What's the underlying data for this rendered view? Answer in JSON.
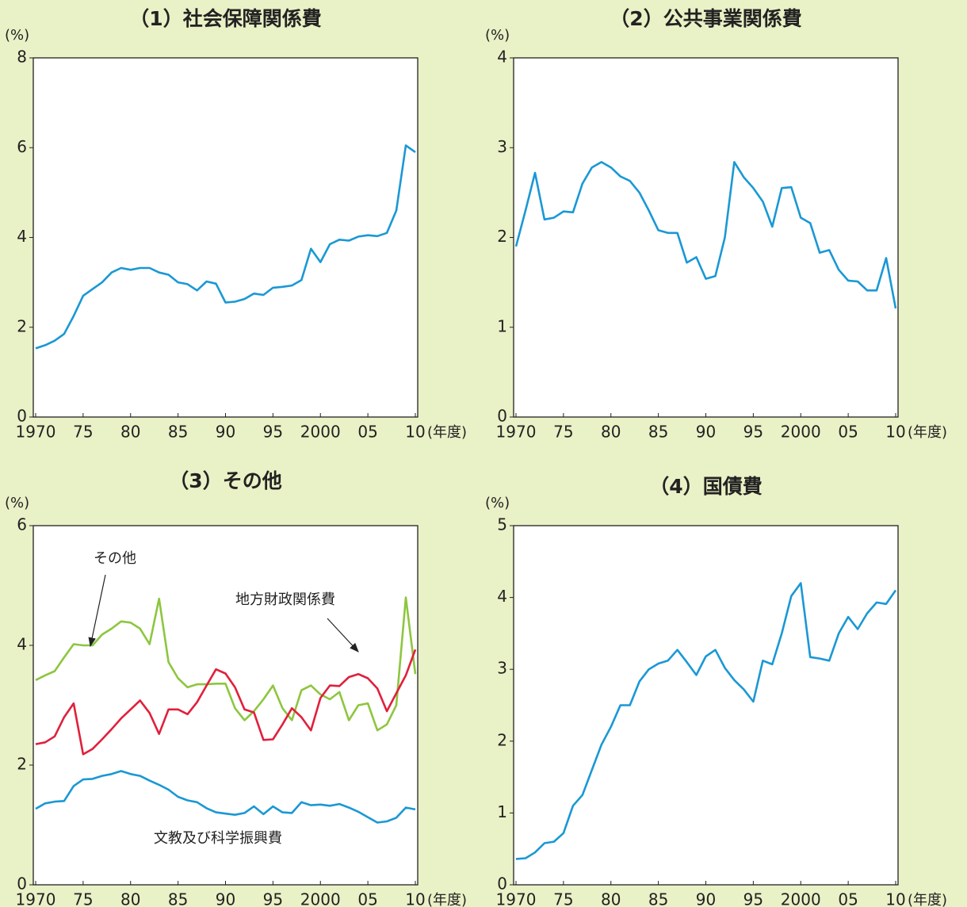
{
  "chart_data": [
    {
      "type": "line",
      "title": "（1）社会保障関係費",
      "y_label": "(%)",
      "x_label": "(年度)",
      "x": [
        1970,
        1971,
        1972,
        1973,
        1974,
        1975,
        1976,
        1977,
        1978,
        1979,
        1980,
        1981,
        1982,
        1983,
        1984,
        1985,
        1986,
        1987,
        1988,
        1989,
        1990,
        1991,
        1992,
        1993,
        1994,
        1995,
        1996,
        1997,
        1998,
        1999,
        2000,
        2001,
        2002,
        2003,
        2004,
        2005,
        2006,
        2007,
        2008,
        2009,
        2010
      ],
      "values": [
        1.53,
        1.6,
        1.7,
        1.85,
        2.25,
        2.7,
        2.85,
        3.0,
        3.22,
        3.32,
        3.28,
        3.32,
        3.32,
        3.22,
        3.17,
        3.0,
        2.96,
        2.82,
        3.02,
        2.97,
        2.55,
        2.57,
        2.63,
        2.75,
        2.72,
        2.88,
        2.9,
        2.93,
        3.05,
        3.75,
        3.45,
        3.85,
        3.95,
        3.93,
        4.02,
        4.05,
        4.03,
        4.1,
        4.6,
        6.05,
        5.9
      ],
      "color": "#1a98d5",
      "xlim": [
        1970,
        2010
      ],
      "xticks": [
        1970,
        {
          "value": 1975,
          "label": "75"
        },
        {
          "value": 1980,
          "label": "80"
        },
        {
          "value": 1985,
          "label": "85"
        },
        {
          "value": 1990,
          "label": "90"
        },
        {
          "value": 1995,
          "label": "95"
        },
        2000,
        {
          "value": 2005,
          "label": "05"
        },
        {
          "value": 2010,
          "label": "10"
        }
      ],
      "ylim": [
        0,
        8
      ],
      "yticks": [
        0,
        2,
        4,
        6,
        8
      ]
    },
    {
      "type": "line",
      "title": "（2）公共事業関係費",
      "y_label": "(%)",
      "x_label": "(年度)",
      "x": [
        1970,
        1971,
        1972,
        1973,
        1974,
        1975,
        1976,
        1977,
        1978,
        1979,
        1980,
        1981,
        1982,
        1983,
        1984,
        1985,
        1986,
        1987,
        1988,
        1989,
        1990,
        1991,
        1992,
        1993,
        1994,
        1995,
        1996,
        1997,
        1998,
        1999,
        2000,
        2001,
        2002,
        2003,
        2004,
        2005,
        2006,
        2007,
        2008,
        2009,
        2010
      ],
      "values": [
        1.9,
        2.3,
        2.72,
        2.2,
        2.22,
        2.29,
        2.28,
        2.6,
        2.78,
        2.84,
        2.78,
        2.68,
        2.63,
        2.5,
        2.3,
        2.08,
        2.05,
        2.05,
        1.72,
        1.78,
        1.54,
        1.57,
        2.0,
        2.84,
        2.67,
        2.55,
        2.4,
        2.12,
        2.55,
        2.56,
        2.22,
        2.16,
        1.83,
        1.86,
        1.64,
        1.52,
        1.51,
        1.41,
        1.41,
        1.77,
        1.21
      ],
      "color": "#1a98d5",
      "xlim": [
        1970,
        2010
      ],
      "xticks": [
        1970,
        {
          "value": 1975,
          "label": "75"
        },
        {
          "value": 1980,
          "label": "80"
        },
        {
          "value": 1985,
          "label": "85"
        },
        {
          "value": 1990,
          "label": "90"
        },
        {
          "value": 1995,
          "label": "95"
        },
        2000,
        {
          "value": 2005,
          "label": "05"
        },
        {
          "value": 2010,
          "label": "10"
        }
      ],
      "ylim": [
        0,
        4
      ],
      "yticks": [
        0,
        1,
        2,
        3,
        4
      ]
    },
    {
      "type": "line",
      "title": "（3）その他",
      "y_label": "(%)",
      "x_label": "(年度)",
      "x": [
        1970,
        1971,
        1972,
        1973,
        1974,
        1975,
        1976,
        1977,
        1978,
        1979,
        1980,
        1981,
        1982,
        1983,
        1984,
        1985,
        1986,
        1987,
        1988,
        1989,
        1990,
        1991,
        1992,
        1993,
        1994,
        1995,
        1996,
        1997,
        1998,
        1999,
        2000,
        2001,
        2002,
        2003,
        2004,
        2005,
        2006,
        2007,
        2008,
        2009,
        2010
      ],
      "series": [
        {
          "name": "その他",
          "color": "#8dc63f",
          "values": [
            3.42,
            3.5,
            3.57,
            3.8,
            4.02,
            4.0,
            4.0,
            4.18,
            4.28,
            4.4,
            4.38,
            4.28,
            4.02,
            4.78,
            3.72,
            3.45,
            3.3,
            3.35,
            3.35,
            3.36,
            3.36,
            2.95,
            2.75,
            2.9,
            3.1,
            3.33,
            2.95,
            2.75,
            3.25,
            3.33,
            3.18,
            3.1,
            3.22,
            2.75,
            3.0,
            3.03,
            2.58,
            2.68,
            3.0,
            4.8,
            3.52
          ]
        },
        {
          "name": "地方財政関係費",
          "color": "#e0203c",
          "values": [
            2.35,
            2.38,
            2.48,
            2.8,
            3.03,
            2.18,
            2.27,
            2.43,
            2.6,
            2.78,
            2.93,
            3.08,
            2.87,
            2.52,
            2.93,
            2.93,
            2.85,
            3.05,
            3.33,
            3.6,
            3.53,
            3.3,
            2.93,
            2.88,
            2.42,
            2.43,
            2.68,
            2.95,
            2.8,
            2.58,
            3.12,
            3.33,
            3.32,
            3.47,
            3.52,
            3.45,
            3.28,
            2.9,
            3.2,
            3.5,
            3.93
          ]
        },
        {
          "name": "文教及び科学振興費",
          "color": "#1a98d5",
          "values": [
            1.27,
            1.36,
            1.39,
            1.4,
            1.65,
            1.76,
            1.77,
            1.82,
            1.85,
            1.9,
            1.85,
            1.82,
            1.74,
            1.67,
            1.59,
            1.47,
            1.41,
            1.38,
            1.28,
            1.21,
            1.19,
            1.17,
            1.2,
            1.31,
            1.18,
            1.31,
            1.21,
            1.2,
            1.38,
            1.33,
            1.34,
            1.32,
            1.35,
            1.29,
            1.22,
            1.13,
            1.04,
            1.06,
            1.12,
            1.29,
            1.26
          ]
        }
      ],
      "xlim": [
        1970,
        2010
      ],
      "xticks": [
        1970,
        {
          "value": 1975,
          "label": "75"
        },
        {
          "value": 1980,
          "label": "80"
        },
        {
          "value": 1985,
          "label": "85"
        },
        {
          "value": 1990,
          "label": "90"
        },
        {
          "value": 1995,
          "label": "95"
        },
        2000,
        {
          "value": 2005,
          "label": "05"
        },
        {
          "value": 2010,
          "label": "10"
        }
      ],
      "ylim": [
        0,
        6
      ],
      "yticks": [
        0,
        2,
        4,
        6
      ]
    },
    {
      "type": "line",
      "title": "（4）国債費",
      "y_label": "(%)",
      "x_label": "(年度)",
      "x": [
        1970,
        1971,
        1972,
        1973,
        1974,
        1975,
        1976,
        1977,
        1978,
        1979,
        1980,
        1981,
        1982,
        1983,
        1984,
        1985,
        1986,
        1987,
        1988,
        1989,
        1990,
        1991,
        1992,
        1993,
        1994,
        1995,
        1996,
        1997,
        1998,
        1999,
        2000,
        2001,
        2002,
        2003,
        2004,
        2005,
        2006,
        2007,
        2008,
        2009,
        2010
      ],
      "values": [
        0.36,
        0.37,
        0.45,
        0.58,
        0.6,
        0.72,
        1.1,
        1.25,
        1.6,
        1.95,
        2.2,
        2.5,
        2.5,
        2.83,
        3.0,
        3.08,
        3.12,
        3.27,
        3.1,
        2.92,
        3.18,
        3.27,
        3.02,
        2.85,
        2.72,
        2.55,
        3.12,
        3.07,
        3.5,
        4.02,
        4.2,
        3.17,
        3.15,
        3.12,
        3.5,
        3.73,
        3.56,
        3.78,
        3.93,
        3.91,
        4.1
      ],
      "color": "#1a98d5",
      "xlim": [
        1970,
        2010
      ],
      "xticks": [
        1970,
        {
          "value": 1975,
          "label": "75"
        },
        {
          "value": 1980,
          "label": "80"
        },
        {
          "value": 1985,
          "label": "85"
        },
        {
          "value": 1990,
          "label": "90"
        },
        {
          "value": 1995,
          "label": "95"
        },
        2000,
        {
          "value": 2005,
          "label": "05"
        },
        {
          "value": 2010,
          "label": "10"
        }
      ],
      "ylim": [
        0,
        5
      ],
      "yticks": [
        0,
        1,
        2,
        3,
        4,
        5
      ]
    }
  ]
}
